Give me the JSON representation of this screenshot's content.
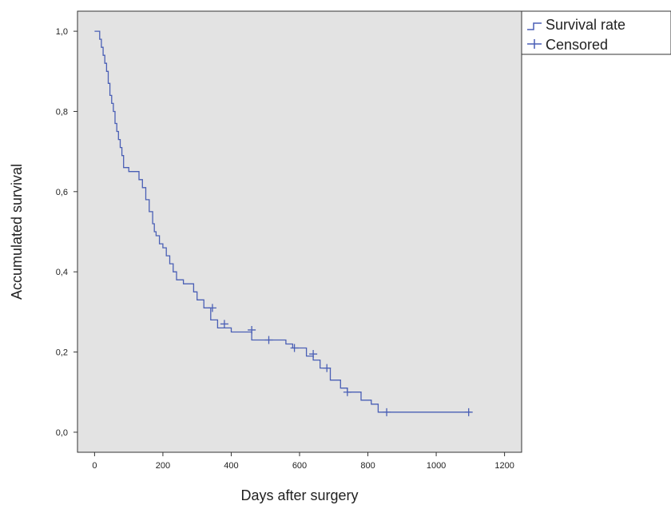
{
  "chart_data": {
    "type": "line",
    "subtype": "kaplan-meier",
    "xlabel": "Days after surgery",
    "ylabel": "Accumulated survival",
    "xlim": [
      -50,
      1250
    ],
    "ylim": [
      -0.05,
      1.05
    ],
    "x_ticks": [
      0,
      200,
      400,
      600,
      800,
      1000,
      1200
    ],
    "x_tick_labels": [
      "0",
      "200",
      "400",
      "600",
      "800",
      "1000",
      "1200"
    ],
    "y_ticks": [
      0,
      0.2,
      0.4,
      0.6,
      0.8,
      1.0
    ],
    "y_tick_labels": [
      "0,0",
      "0,2",
      "0,4",
      "0,6",
      "0,8",
      "1,0"
    ],
    "grid": false,
    "legend_position": "outside-top-right",
    "colors": {
      "plot_background": "#e3e3e3",
      "line": "#4a5fb5",
      "axis": "#333333"
    },
    "series": [
      {
        "name": "Survival rate",
        "type": "step",
        "x": [
          0,
          15,
          20,
          25,
          30,
          35,
          40,
          45,
          50,
          55,
          60,
          65,
          70,
          75,
          80,
          85,
          90,
          95,
          100,
          130,
          140,
          150,
          160,
          170,
          175,
          180,
          190,
          200,
          210,
          220,
          230,
          240,
          260,
          290,
          300,
          320,
          340,
          360,
          400,
          430,
          460,
          520,
          560,
          580,
          620,
          640,
          660,
          690,
          720,
          740,
          780,
          810,
          830,
          850,
          1100
        ],
        "y": [
          1.0,
          0.98,
          0.96,
          0.94,
          0.92,
          0.9,
          0.87,
          0.84,
          0.82,
          0.8,
          0.77,
          0.75,
          0.73,
          0.71,
          0.69,
          0.66,
          0.66,
          0.66,
          0.65,
          0.63,
          0.61,
          0.58,
          0.55,
          0.52,
          0.5,
          0.49,
          0.47,
          0.46,
          0.44,
          0.42,
          0.4,
          0.38,
          0.37,
          0.35,
          0.33,
          0.31,
          0.28,
          0.26,
          0.25,
          0.25,
          0.23,
          0.23,
          0.22,
          0.21,
          0.19,
          0.18,
          0.16,
          0.13,
          0.11,
          0.1,
          0.08,
          0.07,
          0.05,
          0.05,
          0.05
        ]
      },
      {
        "name": "Censored",
        "type": "marker",
        "x": [
          345,
          380,
          460,
          510,
          585,
          640,
          680,
          740,
          855,
          1095
        ],
        "y": [
          0.31,
          0.27,
          0.255,
          0.23,
          0.21,
          0.195,
          0.16,
          0.1,
          0.05,
          0.05
        ]
      }
    ]
  }
}
